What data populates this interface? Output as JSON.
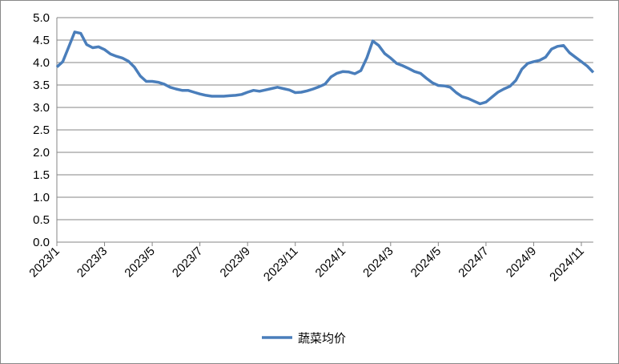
{
  "chart_data": {
    "type": "line",
    "categories": [
      "2023/1",
      null,
      null,
      null,
      null,
      null,
      null,
      null,
      "2023/3",
      null,
      null,
      null,
      null,
      null,
      null,
      null,
      "2023/5",
      null,
      null,
      null,
      null,
      null,
      null,
      null,
      "2023/7",
      null,
      null,
      null,
      null,
      null,
      null,
      null,
      "2023/9",
      null,
      null,
      null,
      null,
      null,
      null,
      null,
      "2023/11",
      null,
      null,
      null,
      null,
      null,
      null,
      null,
      "2024/1",
      null,
      null,
      null,
      null,
      null,
      null,
      null,
      "2024/3",
      null,
      null,
      null,
      null,
      null,
      null,
      null,
      "2024/5",
      null,
      null,
      null,
      null,
      null,
      null,
      null,
      "2024/7",
      null,
      null,
      null,
      null,
      null,
      null,
      null,
      "2024/9",
      null,
      null,
      null,
      null,
      null,
      null,
      null,
      "2024/11",
      null,
      null
    ],
    "series": [
      {
        "name": "蔬菜均价",
        "color": "#4a7ebb",
        "values": [
          3.9,
          4.02,
          4.35,
          4.68,
          4.65,
          4.4,
          4.33,
          4.35,
          4.29,
          4.19,
          4.14,
          4.1,
          4.03,
          3.9,
          3.7,
          3.58,
          3.58,
          3.56,
          3.52,
          3.45,
          3.41,
          3.38,
          3.38,
          3.34,
          3.3,
          3.27,
          3.25,
          3.25,
          3.25,
          3.26,
          3.27,
          3.29,
          3.34,
          3.38,
          3.36,
          3.39,
          3.42,
          3.45,
          3.42,
          3.39,
          3.33,
          3.34,
          3.37,
          3.41,
          3.46,
          3.52,
          3.68,
          3.76,
          3.8,
          3.79,
          3.75,
          3.82,
          4.1,
          4.48,
          4.38,
          4.2,
          4.1,
          3.98,
          3.93,
          3.87,
          3.8,
          3.76,
          3.65,
          3.55,
          3.49,
          3.48,
          3.45,
          3.33,
          3.24,
          3.2,
          3.14,
          3.08,
          3.12,
          3.23,
          3.34,
          3.41,
          3.47,
          3.6,
          3.85,
          3.98,
          4.02,
          4.05,
          4.12,
          4.3,
          4.36,
          4.38,
          4.22,
          4.12,
          4.02,
          3.92,
          3.78
        ]
      }
    ],
    "ylim": [
      0,
      5
    ],
    "yticks": [
      {
        "value": 0,
        "label": "0.0"
      },
      {
        "value": 0.5,
        "label": "0.5"
      },
      {
        "value": 1,
        "label": "1.0"
      },
      {
        "value": 1.5,
        "label": "1.5"
      },
      {
        "value": 2,
        "label": "2.0"
      },
      {
        "value": 2.5,
        "label": "2.5"
      },
      {
        "value": 3,
        "label": "3.0"
      },
      {
        "value": 3.5,
        "label": "3.5"
      },
      {
        "value": 4,
        "label": "4.0"
      },
      {
        "value": 4.5,
        "label": "4.5"
      },
      {
        "value": 5,
        "label": "5.0"
      }
    ],
    "grid": true,
    "legend": "bottom"
  }
}
